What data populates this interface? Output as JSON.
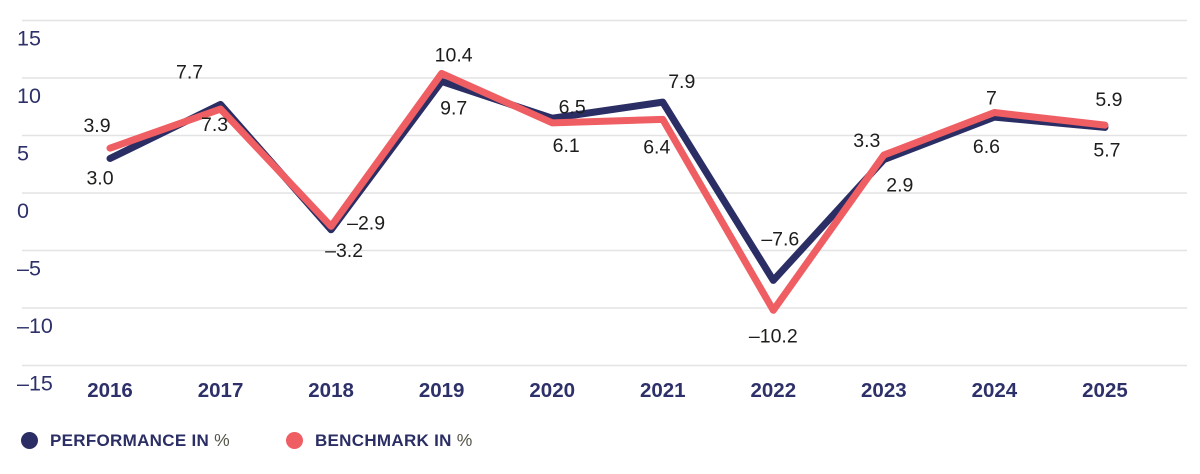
{
  "chart_data": {
    "type": "line",
    "title": "",
    "xlabel": "",
    "ylabel": "",
    "categories": [
      "2016",
      "2017",
      "2018",
      "2019",
      "2020",
      "2021",
      "2022",
      "2023",
      "2024",
      "2025"
    ],
    "series": [
      {
        "name": "PERFORMANCE IN %",
        "color": "#2b2e64",
        "values": [
          3.0,
          7.7,
          -3.2,
          9.7,
          6.5,
          7.9,
          -7.6,
          2.9,
          6.6,
          5.7
        ],
        "labels": [
          "3.0",
          "7.7",
          "–3.2",
          "9.7",
          "6.5",
          "7.9",
          "–7.6",
          "2.9",
          "6.6",
          "5.7"
        ]
      },
      {
        "name": "BENCHMARK IN %",
        "color": "#ef5e63",
        "values": [
          3.9,
          7.3,
          -2.9,
          10.4,
          6.1,
          6.4,
          -10.2,
          3.3,
          7,
          5.9
        ],
        "labels": [
          "3.9",
          "7.3",
          "–2.9",
          "10.4",
          "6.1",
          "6.4",
          "–10.2",
          "3.3",
          "7",
          "5.9"
        ]
      }
    ],
    "y_ticks": [
      15,
      10,
      5,
      0,
      -5,
      -10,
      -15
    ],
    "y_tick_labels": [
      "15",
      "10",
      "5",
      "0",
      "–5",
      "–10",
      "–15"
    ],
    "ylim": [
      -15,
      15
    ],
    "grid": "horizontal",
    "legend_position": "bottom-left"
  },
  "legend": {
    "items": [
      {
        "label": "PERFORMANCE IN",
        "suffix": "%",
        "color": "#2b2e64"
      },
      {
        "label": "BENCHMARK IN",
        "suffix": "%",
        "color": "#ef5e63"
      }
    ]
  },
  "colors": {
    "gridline": "#e3e3e3",
    "axis_text": "#2e3169",
    "value_label": "#1d1d1b",
    "background": "#ffffff"
  }
}
